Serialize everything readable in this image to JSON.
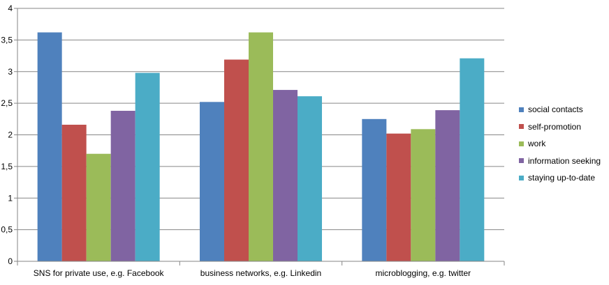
{
  "chart_data": {
    "type": "bar",
    "title": "",
    "xlabel": "",
    "ylabel": "",
    "ylim": [
      0,
      4
    ],
    "yticks": [
      "0",
      "0,5",
      "1",
      "1,5",
      "2",
      "2,5",
      "3",
      "3,5",
      "4"
    ],
    "ytick_values": [
      0,
      0.5,
      1,
      1.5,
      2,
      2.5,
      3,
      3.5,
      4
    ],
    "grid": true,
    "legend_position": "right",
    "categories": [
      "SNS for private use, e.g. Facebook",
      "business networks, e.g. Linkedin",
      "microblogging, e.g. twitter"
    ],
    "series": [
      {
        "name": "social contacts",
        "color": "#4F81BD",
        "values": [
          3.62,
          2.52,
          2.25
        ]
      },
      {
        "name": "self-promotion",
        "color": "#C0504D",
        "values": [
          2.16,
          3.19,
          2.02
        ]
      },
      {
        "name": "work",
        "color": "#9BBB59",
        "values": [
          1.7,
          3.62,
          2.09
        ]
      },
      {
        "name": "information seeking",
        "color": "#8064A2",
        "values": [
          2.38,
          2.71,
          2.39
        ]
      },
      {
        "name": "staying up-to-date",
        "color": "#4BACC6",
        "values": [
          2.98,
          2.61,
          3.21
        ]
      }
    ]
  }
}
